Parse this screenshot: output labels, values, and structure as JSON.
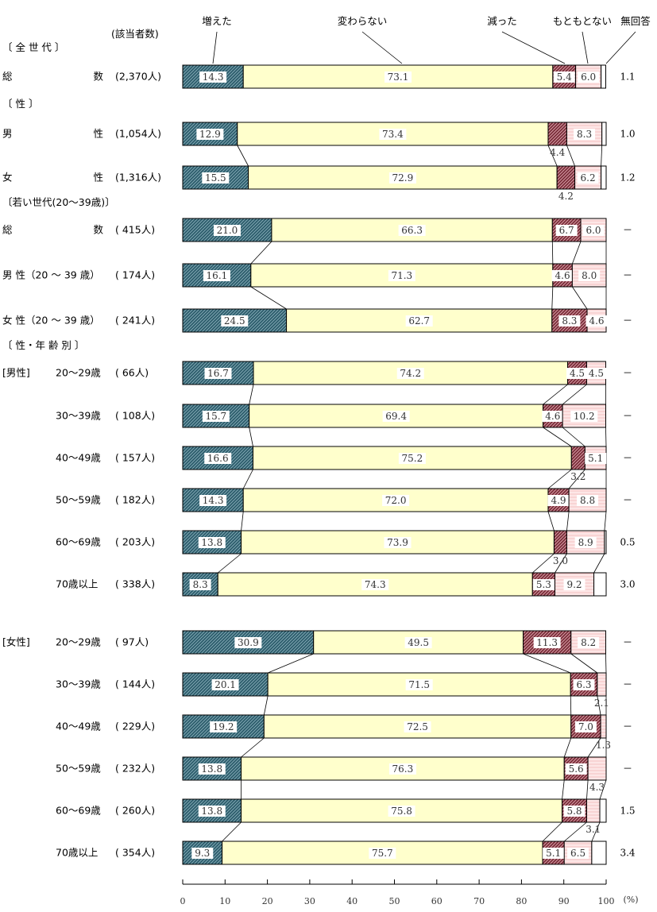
{
  "chart_data": {
    "type": "bar",
    "stacked": true,
    "orientation": "horizontal",
    "percent": true,
    "colors": {
      "増えた": "#2d5d6c",
      "変わらない": "#ffffcc",
      "減った": "#8b3a45",
      "もともとない": "#fbd8d8",
      "無回答": "#ffffff"
    },
    "legend": [
      "増えた",
      "変わらない",
      "減った",
      "もともとない",
      "無回答"
    ],
    "count_header": "(該当者数)",
    "x_ticks": [
      "0",
      "10",
      "20",
      "30",
      "40",
      "50",
      "60",
      "70",
      "80",
      "90",
      "100"
    ],
    "x_unit": "(%)",
    "xlim": [
      0,
      100
    ],
    "section_headers": [
      {
        "id": "all",
        "text": "〔 全 世 代 〕"
      },
      {
        "id": "sex",
        "text": "〔 性 〕"
      },
      {
        "id": "young",
        "text": "〔若い世代(20～39歳)〕"
      },
      {
        "id": "sexage",
        "text": "〔 性・年 齢 別 〕"
      }
    ],
    "groups": [
      {
        "group_label": "",
        "label_left": "総",
        "label_right": "数",
        "count": "(2,370人)",
        "values": [
          14.3,
          73.1,
          5.4,
          6.0,
          1.1
        ],
        "value_labels": [
          "14.3",
          "73.1",
          "5.4",
          "6.0",
          ""
        ],
        "na_label": "1.1",
        "below_labels": []
      },
      {
        "group_label": "",
        "label_left": "男",
        "label_right": "性",
        "count": "(1,054人)",
        "values": [
          12.9,
          73.4,
          4.4,
          8.3,
          1.0
        ],
        "value_labels": [
          "12.9",
          "73.4",
          "",
          "8.3",
          ""
        ],
        "na_label": "1.0",
        "below_labels": [
          {
            "seg": 2,
            "text": "4.4"
          }
        ]
      },
      {
        "group_label": "",
        "label_left": "女",
        "label_right": "性",
        "count": "(1,316人)",
        "values": [
          15.5,
          72.9,
          4.2,
          6.2,
          1.2
        ],
        "value_labels": [
          "15.5",
          "72.9",
          "",
          "6.2",
          ""
        ],
        "na_label": "1.2",
        "below_labels": [
          {
            "seg": 2,
            "text": "4.2"
          }
        ]
      },
      {
        "group_label": "",
        "label_left": "総",
        "label_right": "数",
        "count": "( 415人)",
        "values": [
          21.0,
          66.3,
          6.7,
          6.0,
          0
        ],
        "value_labels": [
          "21.0",
          "66.3",
          "6.7",
          "6.0",
          ""
        ],
        "na_label": "－",
        "below_labels": []
      },
      {
        "group_label": "",
        "label_left": "男 性（20 ～ 39 歳）",
        "label_right": "",
        "count": "( 174人)",
        "values": [
          16.1,
          71.3,
          4.6,
          8.0,
          0
        ],
        "value_labels": [
          "16.1",
          "71.3",
          "4.6",
          "8.0",
          ""
        ],
        "na_label": "－",
        "below_labels": []
      },
      {
        "group_label": "",
        "label_left": "女 性（20 ～ 39 歳）",
        "label_right": "",
        "count": "( 241人)",
        "values": [
          24.5,
          62.7,
          8.3,
          4.6,
          0
        ],
        "value_labels": [
          "24.5",
          "62.7",
          "8.3",
          "4.6",
          ""
        ],
        "na_label": "－",
        "below_labels": []
      },
      {
        "group_label": "[男性]",
        "label_left": "20～29歳",
        "label_right": "",
        "count": "(  66人)",
        "values": [
          16.7,
          74.2,
          4.5,
          4.5,
          0
        ],
        "value_labels": [
          "16.7",
          "74.2",
          "4.5",
          "4.5",
          ""
        ],
        "na_label": "－",
        "below_labels": []
      },
      {
        "group_label": "",
        "label_left": "30～39歳",
        "label_right": "",
        "count": "( 108人)",
        "values": [
          15.7,
          69.4,
          4.6,
          10.2,
          0
        ],
        "value_labels": [
          "15.7",
          "69.4",
          "4.6",
          "10.2",
          ""
        ],
        "na_label": "－",
        "below_labels": []
      },
      {
        "group_label": "",
        "label_left": "40～49歳",
        "label_right": "",
        "count": "( 157人)",
        "values": [
          16.6,
          75.2,
          3.2,
          5.1,
          0
        ],
        "value_labels": [
          "16.6",
          "75.2",
          "",
          "5.1",
          ""
        ],
        "na_label": "－",
        "below_labels": [
          {
            "seg": 2,
            "text": "3.2"
          }
        ]
      },
      {
        "group_label": "",
        "label_left": "50～59歳",
        "label_right": "",
        "count": "( 182人)",
        "values": [
          14.3,
          72.0,
          4.9,
          8.8,
          0
        ],
        "value_labels": [
          "14.3",
          "72.0",
          "4.9",
          "8.8",
          ""
        ],
        "na_label": "－",
        "below_labels": []
      },
      {
        "group_label": "",
        "label_left": "60～69歳",
        "label_right": "",
        "count": "( 203人)",
        "values": [
          13.8,
          73.9,
          3.0,
          8.9,
          0.5
        ],
        "value_labels": [
          "13.8",
          "73.9",
          "",
          "8.9",
          ""
        ],
        "na_label": "0.5",
        "below_labels": [
          {
            "seg": 2,
            "text": "3.0"
          }
        ]
      },
      {
        "group_label": "",
        "label_left": "70歳以上",
        "label_right": "",
        "count": "( 338人)",
        "values": [
          8.3,
          74.3,
          5.3,
          9.2,
          3.0
        ],
        "value_labels": [
          "8.3",
          "74.3",
          "5.3",
          "9.2",
          ""
        ],
        "na_label": "3.0",
        "below_labels": []
      },
      {
        "group_label": "[女性]",
        "label_left": "20～29歳",
        "label_right": "",
        "count": "(  97人)",
        "values": [
          30.9,
          49.5,
          11.3,
          8.2,
          0
        ],
        "value_labels": [
          "30.9",
          "49.5",
          "11.3",
          "8.2",
          ""
        ],
        "na_label": "－",
        "below_labels": []
      },
      {
        "group_label": "",
        "label_left": "30～39歳",
        "label_right": "",
        "count": "( 144人)",
        "values": [
          20.1,
          71.5,
          6.3,
          2.1,
          0
        ],
        "value_labels": [
          "20.1",
          "71.5",
          "6.3",
          "",
          ""
        ],
        "na_label": "－",
        "below_labels": [
          {
            "seg": 3,
            "text": "2.1"
          }
        ]
      },
      {
        "group_label": "",
        "label_left": "40～49歳",
        "label_right": "",
        "count": "( 229人)",
        "values": [
          19.2,
          72.5,
          7.0,
          1.3,
          0
        ],
        "value_labels": [
          "19.2",
          "72.5",
          "7.0",
          "",
          ""
        ],
        "na_label": "－",
        "below_labels": [
          {
            "seg": 3,
            "text": "1.3"
          }
        ]
      },
      {
        "group_label": "",
        "label_left": "50～59歳",
        "label_right": "",
        "count": "( 232人)",
        "values": [
          13.8,
          76.3,
          5.6,
          4.3,
          0
        ],
        "value_labels": [
          "13.8",
          "76.3",
          "5.6",
          "",
          ""
        ],
        "na_label": "－",
        "below_labels": [
          {
            "seg": 3,
            "text": "4.3"
          }
        ]
      },
      {
        "group_label": "",
        "label_left": "60～69歳",
        "label_right": "",
        "count": "( 260人)",
        "values": [
          13.8,
          75.8,
          5.8,
          3.1,
          1.5
        ],
        "value_labels": [
          "13.8",
          "75.8",
          "5.8",
          "",
          ""
        ],
        "na_label": "1.5",
        "below_labels": [
          {
            "seg": 3,
            "text": "3.1"
          }
        ]
      },
      {
        "group_label": "",
        "label_left": "70歳以上",
        "label_right": "",
        "count": "( 354人)",
        "values": [
          9.3,
          75.7,
          5.1,
          6.5,
          3.4
        ],
        "value_labels": [
          "9.3",
          "75.7",
          "5.1",
          "6.5",
          ""
        ],
        "na_label": "3.4",
        "below_labels": []
      }
    ]
  }
}
